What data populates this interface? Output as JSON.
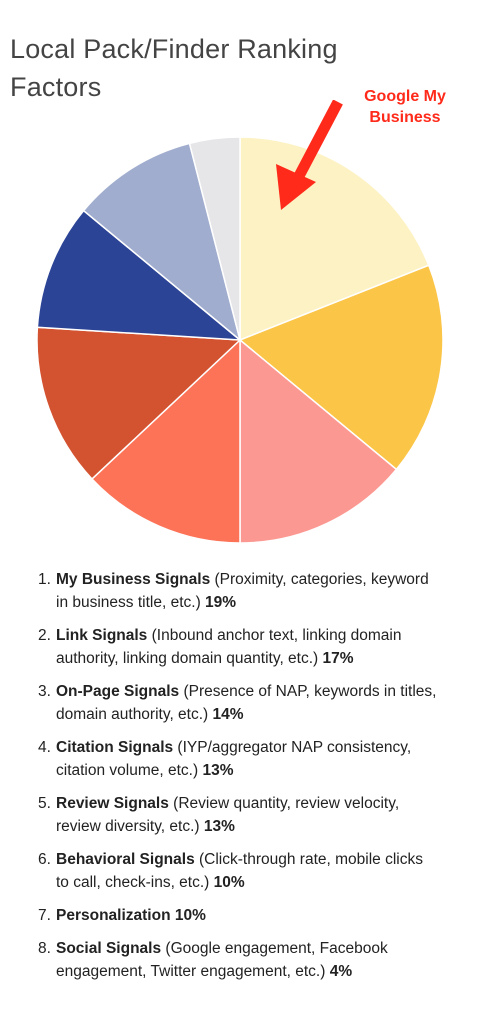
{
  "page": {
    "title": "Local Pack/Finder Ranking Factors",
    "callout": "Google My Business"
  },
  "colors": {
    "callout": "#ff2a1a",
    "slice_border": "#ffffff"
  },
  "chart_data": {
    "type": "pie",
    "title": "Local Pack/Finder Ranking Factors",
    "start": "12 o'clock",
    "direction": "clockwise",
    "legend": "none",
    "slices": [
      {
        "label": "My Business Signals",
        "value": 19,
        "color": "#fdf2c4"
      },
      {
        "label": "Link Signals",
        "value": 17,
        "color": "#fbc547"
      },
      {
        "label": "On-Page Signals",
        "value": 14,
        "color": "#fc9892"
      },
      {
        "label": "Citation Signals",
        "value": 13,
        "color": "#fd7358"
      },
      {
        "label": "Review Signals",
        "value": 13,
        "color": "#d35230"
      },
      {
        "label": "Behavioral Signals",
        "value": 10,
        "color": "#2c4496"
      },
      {
        "label": "Personalization",
        "value": 10,
        "color": "#a0adce"
      },
      {
        "label": "Social Signals",
        "value": 4,
        "color": "#e6e6e9"
      }
    ]
  },
  "factors": [
    {
      "num": "1.",
      "name": "My Business Signals",
      "desc": " (Proximity, categories, keyword in business title, etc.) ",
      "pct": "19%"
    },
    {
      "num": "2.",
      "name": "Link Signals",
      "desc": " (Inbound anchor text, linking domain authority, linking domain quantity, etc.) ",
      "pct": "17%"
    },
    {
      "num": "3.",
      "name": "On-Page Signals",
      "desc": " (Presence of NAP, keywords in titles, domain authority, etc.) ",
      "pct": "14%"
    },
    {
      "num": "4.",
      "name": "Citation Signals",
      "desc": " (IYP/aggregator NAP consistency, citation volume, etc.) ",
      "pct": "13%"
    },
    {
      "num": "5.",
      "name": "Review Signals",
      "desc": " (Review quantity, review velocity, review diversity, etc.) ",
      "pct": "13%"
    },
    {
      "num": "6.",
      "name": "Behavioral Signals",
      "desc": " (Click-through rate, mobile clicks to call, check-ins, etc.) ",
      "pct": "10%"
    },
    {
      "num": "7.",
      "name": "Personalization",
      "desc": "  ",
      "pct": "10%"
    },
    {
      "num": "8.",
      "name": "Social Signals",
      "desc": " (Google engagement, Facebook engagement, Twitter engagement, etc.) ",
      "pct": "4%"
    }
  ]
}
